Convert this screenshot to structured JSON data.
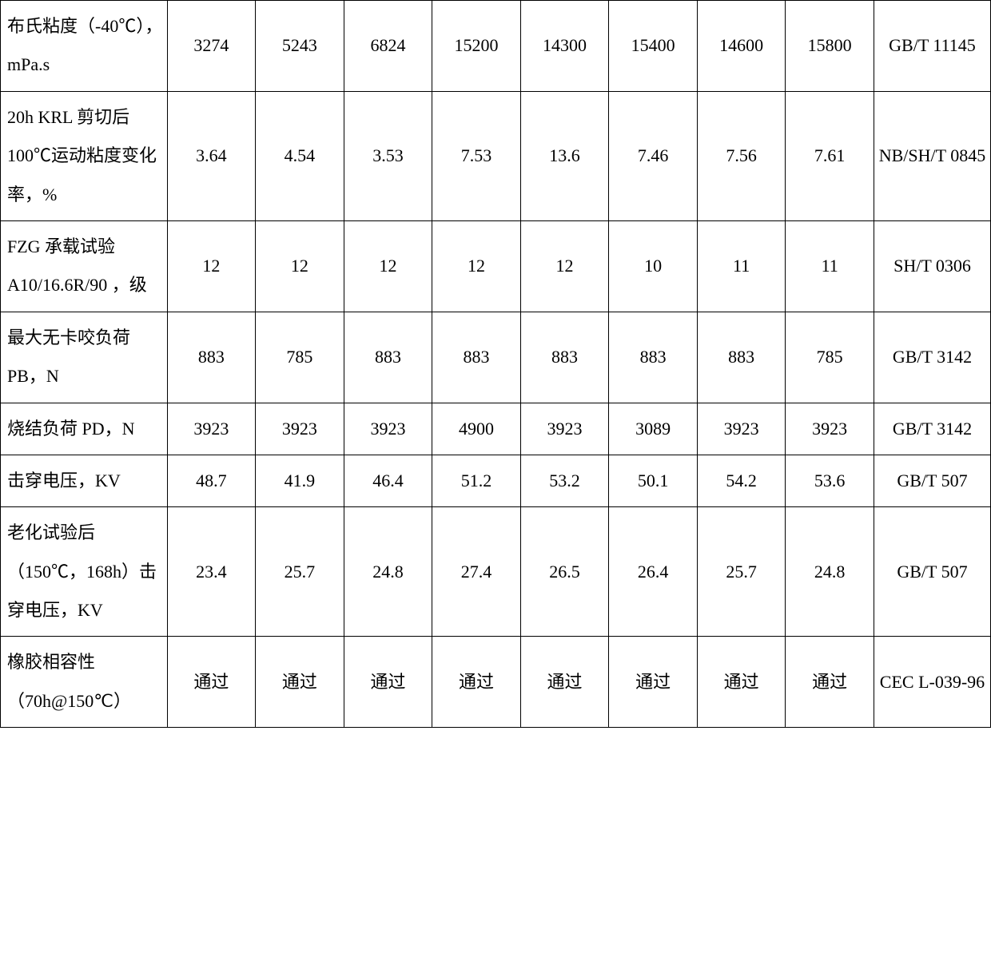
{
  "table": {
    "columns": {
      "label_width": 200,
      "data_width": 106,
      "method_width": 140,
      "data_count": 8
    },
    "styling": {
      "border_color": "#000000",
      "background_color": "#ffffff",
      "text_color": "#000000",
      "font_size": 22,
      "font_family": "SimSun",
      "line_height": 2.2
    },
    "rows": [
      {
        "label": "布氏粘度（-40℃），mPa.s",
        "values": [
          "3274",
          "5243",
          "6824",
          "15200",
          "14300",
          "15400",
          "14600",
          "15800"
        ],
        "method": "GB/T 11145"
      },
      {
        "label": "20h KRL 剪切后100℃运动粘度变化率，%",
        "values": [
          "3.64",
          "4.54",
          "3.53",
          "7.53",
          "13.6",
          "7.46",
          "7.56",
          "7.61"
        ],
        "method": "NB/SH/T 0845"
      },
      {
        "label": "FZG 承载试验A10/16.6R/90 ，级",
        "values": [
          "12",
          "12",
          "12",
          "12",
          "12",
          "10",
          "11",
          "11"
        ],
        "method": "SH/T 0306"
      },
      {
        "label": "最大无卡咬负荷PB，N",
        "values": [
          "883",
          "785",
          "883",
          "883",
          "883",
          "883",
          "883",
          "785"
        ],
        "method": "GB/T 3142"
      },
      {
        "label": "烧结负荷 PD，N",
        "values": [
          "3923",
          "3923",
          "3923",
          "4900",
          "3923",
          "3089",
          "3923",
          "3923"
        ],
        "method": "GB/T 3142"
      },
      {
        "label": "击穿电压，KV",
        "values": [
          "48.7",
          "41.9",
          "46.4",
          "51.2",
          "53.2",
          "50.1",
          "54.2",
          "53.6"
        ],
        "method": "GB/T 507"
      },
      {
        "label": "老化试验后（150℃，168h）击穿电压，KV",
        "values": [
          "23.4",
          "25.7",
          "24.8",
          "27.4",
          "26.5",
          "26.4",
          "25.7",
          "24.8"
        ],
        "method": "GB/T 507"
      },
      {
        "label": "橡胶相容性（70h@150℃）",
        "values": [
          "通过",
          "通过",
          "通过",
          "通过",
          "通过",
          "通过",
          "通过",
          "通过"
        ],
        "method": "CEC L-039-96"
      }
    ]
  }
}
